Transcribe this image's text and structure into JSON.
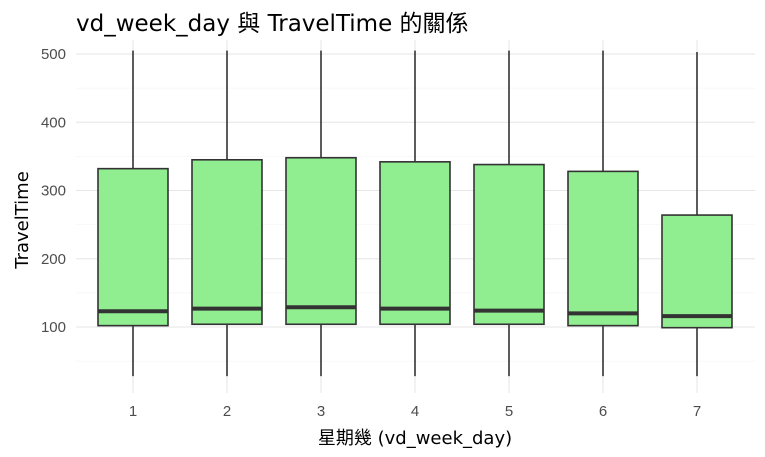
{
  "chart_data": {
    "type": "box",
    "title": "vd_week_day 與 TravelTime 的關係",
    "xlabel": "星期幾 (vd_week_day)",
    "ylabel": "TravelTime",
    "ylim": [
      25,
      510
    ],
    "yticks": [
      100,
      200,
      300,
      400,
      500
    ],
    "grid": true,
    "fill_color": "#90EE90",
    "line_color": "#333333",
    "categories": [
      "1",
      "2",
      "3",
      "4",
      "5",
      "6",
      "7"
    ],
    "boxes": [
      {
        "category": "1",
        "whisker_low": 28,
        "q1": 102,
        "median": 123,
        "q3": 332,
        "whisker_high": 505
      },
      {
        "category": "2",
        "whisker_low": 28,
        "q1": 104,
        "median": 127,
        "q3": 345,
        "whisker_high": 505
      },
      {
        "category": "3",
        "whisker_low": 28,
        "q1": 104,
        "median": 129,
        "q3": 348,
        "whisker_high": 505
      },
      {
        "category": "4",
        "whisker_low": 28,
        "q1": 104,
        "median": 127,
        "q3": 342,
        "whisker_high": 505
      },
      {
        "category": "5",
        "whisker_low": 28,
        "q1": 104,
        "median": 124,
        "q3": 338,
        "whisker_high": 505
      },
      {
        "category": "6",
        "whisker_low": 28,
        "q1": 102,
        "median": 120,
        "q3": 328,
        "whisker_high": 505
      },
      {
        "category": "7",
        "whisker_low": 28,
        "q1": 99,
        "median": 116,
        "q3": 264,
        "whisker_high": 503
      }
    ]
  }
}
